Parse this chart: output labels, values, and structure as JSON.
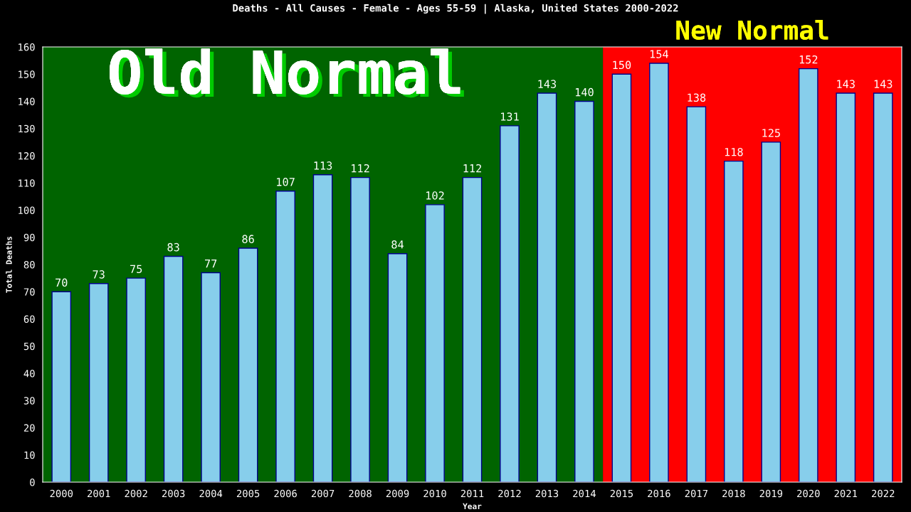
{
  "chart_data": {
    "type": "bar",
    "title": "Deaths - All Causes - Female - Ages 55-59 | Alaska, United States 2000-2022",
    "xlabel": "Year",
    "ylabel": "Total Deaths",
    "categories": [
      "2000",
      "2001",
      "2002",
      "2003",
      "2004",
      "2005",
      "2006",
      "2007",
      "2008",
      "2009",
      "2010",
      "2011",
      "2012",
      "2013",
      "2014",
      "2015",
      "2016",
      "2017",
      "2018",
      "2019",
      "2020",
      "2021",
      "2022"
    ],
    "values": [
      70,
      73,
      75,
      83,
      77,
      86,
      107,
      113,
      112,
      84,
      102,
      112,
      131,
      143,
      140,
      150,
      154,
      138,
      118,
      125,
      152,
      143,
      143
    ],
    "color": "#87ceeb",
    "data_labels": true,
    "ylim": [
      0,
      160
    ],
    "yticks": [
      0,
      10,
      20,
      30,
      40,
      50,
      60,
      70,
      80,
      90,
      100,
      110,
      120,
      130,
      140,
      150,
      160
    ],
    "bands": [
      {
        "axis": "x",
        "from": "2000",
        "to": "2014",
        "label": "Old Normal",
        "color": "#006400"
      },
      {
        "axis": "x",
        "from": "2015",
        "to": "2022",
        "label": "New Normal",
        "color": "#ff0000"
      }
    ],
    "grid": false,
    "legend": false
  }
}
